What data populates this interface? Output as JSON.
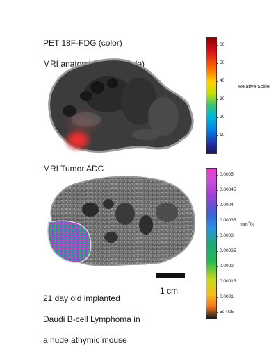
{
  "pet_panel": {
    "caption_line1": "PET 18F-FDG (color)",
    "caption_line2": "MRI anatomical (grayscale)",
    "colorbar": {
      "ticks": [
        "60",
        "50",
        "40",
        "30",
        "20",
        "10"
      ],
      "tick_values": [
        60,
        50,
        40,
        30,
        20,
        10
      ],
      "range": [
        0,
        64
      ],
      "title": "Relative Scale"
    }
  },
  "adc_panel": {
    "caption": "MRI Tumor ADC",
    "colorbar": {
      "ticks": [
        "0.0005",
        "0.00045",
        "0.0004",
        "0.00035",
        "0.0003",
        "0.00025",
        "0.0002",
        "0.00015",
        "0.0001",
        "5e-005"
      ],
      "tick_values": [
        0.0005,
        0.00045,
        0.0004,
        0.00035,
        0.0003,
        0.00025,
        0.0002,
        0.00015,
        0.0001,
        5e-05
      ],
      "range": [
        3e-05,
        0.00052
      ],
      "units_base": "mm",
      "units_exp": "2",
      "units_suffix": "/s"
    }
  },
  "scale_bar": {
    "label": "1 cm"
  },
  "description": {
    "line1": "21 day old implanted",
    "line2": "Daudi B-cell Lymphoma in",
    "line3": "a nude athymic mouse"
  }
}
